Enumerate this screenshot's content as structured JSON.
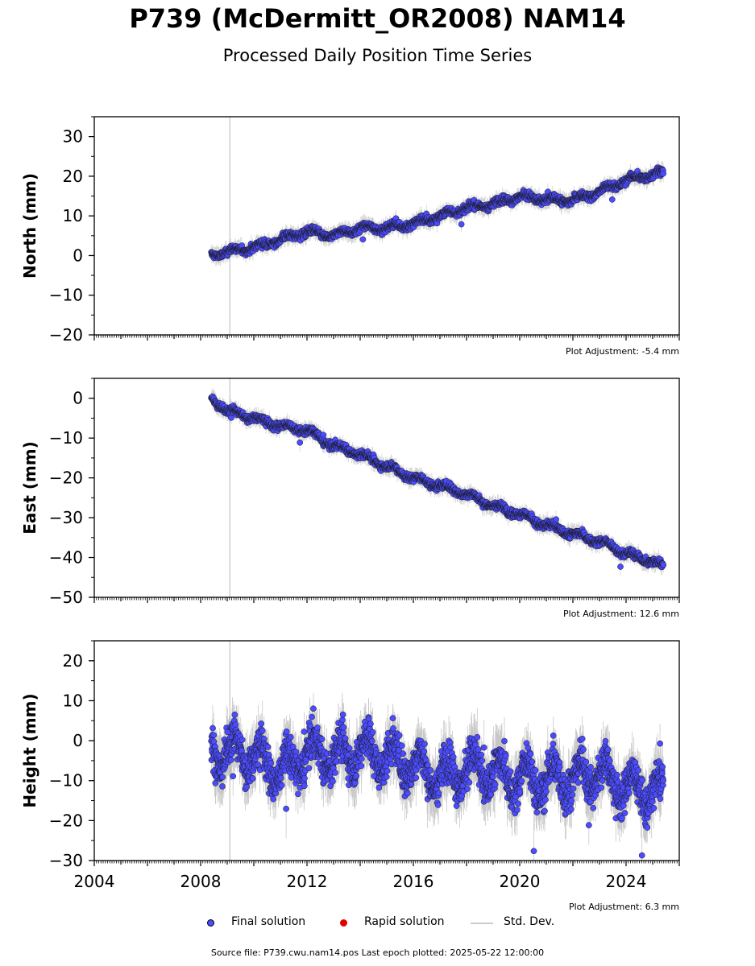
{
  "header": {
    "title": "P739 (McDermitt_OR2008) NAM14",
    "subtitle": "Processed Daily Position Time Series"
  },
  "legend": {
    "final_label": "Final solution",
    "rapid_label": "Rapid solution",
    "std_label": "Std. Dev.",
    "final_color": "#4b4bff",
    "rapid_color": "#e00000",
    "std_color": "#cccccc"
  },
  "footer": {
    "text": "Source file: P739.cwu.nam14.pos  Last epoch plotted: 2025-05-22 12:00:00"
  },
  "chart_data": [
    {
      "type": "scatter",
      "ylabel": "North (mm)",
      "adjustment": "Plot Adjustment: -5.4 mm",
      "xlim": [
        2004,
        2026
      ],
      "ylim": [
        -20,
        35
      ],
      "yticks": [
        -20,
        -10,
        0,
        10,
        20,
        30
      ],
      "ytick_labels": [
        "−20",
        "−10",
        "0",
        "10",
        "20",
        "30"
      ],
      "show_xtick_labels": false,
      "event_line_x": 2009.1,
      "series": [
        {
          "x": [
            2008.4,
            2009,
            2010,
            2011,
            2012,
            2013,
            2014,
            2015,
            2016,
            2017,
            2018,
            2019,
            2020,
            2021,
            2022,
            2023,
            2024,
            2025.4
          ],
          "y": [
            0,
            1,
            2,
            4,
            6,
            5,
            7,
            7,
            8,
            10,
            12,
            13,
            15,
            14,
            14,
            16,
            19,
            21
          ]
        }
      ]
    },
    {
      "type": "scatter",
      "ylabel": "East (mm)",
      "adjustment": "Plot Adjustment: 12.6 mm",
      "xlim": [
        2004,
        2026
      ],
      "ylim": [
        -50,
        5
      ],
      "yticks": [
        -50,
        -40,
        -30,
        -20,
        -10,
        0
      ],
      "ytick_labels": [
        "−50",
        "−40",
        "−30",
        "−20",
        "−10",
        "0"
      ],
      "show_xtick_labels": false,
      "event_line_x": 2009.1,
      "series": [
        {
          "x": [
            2008.4,
            2009,
            2010,
            2011,
            2012,
            2013,
            2014,
            2015,
            2016,
            2017,
            2018,
            2019,
            2020,
            2021,
            2022,
            2023,
            2024,
            2025.4
          ],
          "y": [
            0,
            -3,
            -5,
            -7,
            -8,
            -12,
            -14,
            -17,
            -20,
            -22,
            -24,
            -27,
            -29,
            -32,
            -34,
            -36,
            -39,
            -42
          ]
        }
      ]
    },
    {
      "type": "scatter",
      "ylabel": "Height (mm)",
      "adjustment": "Plot Adjustment: 6.3 mm",
      "xlim": [
        2004,
        2026
      ],
      "ylim": [
        -30,
        25
      ],
      "yticks": [
        -30,
        -20,
        -10,
        0,
        10,
        20
      ],
      "ytick_labels": [
        "−30",
        "−20",
        "−10",
        "0",
        "10",
        "20"
      ],
      "show_xtick_labels": true,
      "xticks": [
        2004,
        2008,
        2012,
        2016,
        2020,
        2024
      ],
      "xtick_labels": [
        "2004",
        "2008",
        "2012",
        "2016",
        "2020",
        "2024"
      ],
      "event_line_x": 2009.1,
      "series": [
        {
          "x": [
            2008.4,
            2009,
            2010,
            2011,
            2012,
            2013,
            2014,
            2015,
            2016,
            2017,
            2018,
            2019,
            2020,
            2021,
            2022,
            2023,
            2024,
            2025.4
          ],
          "y": [
            -3,
            -2,
            -4,
            -8,
            -3,
            -4,
            -2,
            -4,
            -6,
            -9,
            -7,
            -8,
            -10,
            -10,
            -9,
            -8,
            -12,
            -13
          ]
        }
      ]
    }
  ]
}
